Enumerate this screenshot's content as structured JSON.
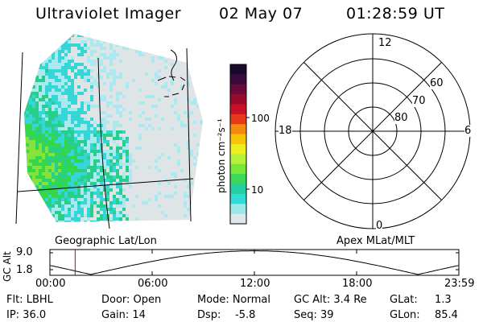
{
  "header": {
    "instrument": "Ultraviolet Imager",
    "date": "02 May 07",
    "time": "01:28:59 UT"
  },
  "colorbar": {
    "label": "photon cm⁻²s⁻¹",
    "ticks": [
      "100",
      "10"
    ],
    "colors": [
      "#1a0a30",
      "#3b0a3a",
      "#6a0a3a",
      "#9a0a2a",
      "#c8102a",
      "#e83a1a",
      "#f58a10",
      "#f7c40a",
      "#e8f020",
      "#b8f03a",
      "#7ae63a",
      "#3cd85a",
      "#24cfa0",
      "#30dcd6",
      "#9ae8ea",
      "#dde8ec"
    ]
  },
  "image_panel": {
    "caption": "Geographic Lat/Lon",
    "palette": {
      "gray": "#dfe4e6",
      "paleblue": "#a9e9ef",
      "cyan": "#35d6d6",
      "teal": "#27cf8a",
      "green": "#34d64a",
      "lime": "#86e23c"
    }
  },
  "polar_plot": {
    "caption": "Apex MLat/MLT",
    "mlt_labels": [
      "12",
      "18",
      "6",
      "0"
    ],
    "lat_labels": [
      "60",
      "70",
      "80"
    ]
  },
  "altitude_plot": {
    "ylabel": "GC Alt",
    "ymax": "9.0",
    "ymin": "1.8",
    "xticks": [
      "00:00",
      "06:00",
      "12:00",
      "18:00",
      "23:59"
    ],
    "current_time_hours": 1.48,
    "marker_color": "#cc0000"
  },
  "info": {
    "flt": "Flt: LBHL",
    "ip": "IP: 36.0",
    "door": "Door: Open",
    "gain": "Gain: 14",
    "mode": "Mode: Normal",
    "dsp_label": "Dsp:",
    "dsp_value": "-5.8",
    "gcalt": "GC Alt: 3.4 Re",
    "seq": "Seq: 39",
    "glat_label": "GLat:",
    "glat_value": "1.3",
    "glon_label": "GLon:",
    "glon_value": "85.4"
  }
}
